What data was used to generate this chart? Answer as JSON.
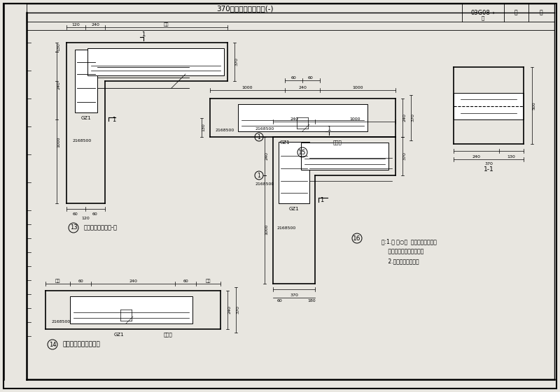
{
  "bg_color": "#e8e6e0",
  "white": "#ffffff",
  "black": "#000000",
  "hatch_fc": "#c8c8c8",
  "title_bottom": "370版拉接筋节点构造(-)",
  "ref_code": "03G08→",
  "label_13_circle": "13",
  "label_13_text": "拉接筋洞口做法（-）",
  "label_14_circle": "14",
  "label_14_text": "拉接筋洞口做法（二）",
  "label_15_circle": "15",
  "label_16_circle": "16",
  "note_line1": "注:1.图 ⑳○⑴  拉接筋间距按图示",
  "note_line2": "    局部尺寸限位时的纳筋。",
  "note_line3": "    2.拉筋纵加、抉加。",
  "gz1": "GZ1",
  "2168500": "2168500",
  "label_1_1": "1-1",
  "lajin": "拉筋置"
}
